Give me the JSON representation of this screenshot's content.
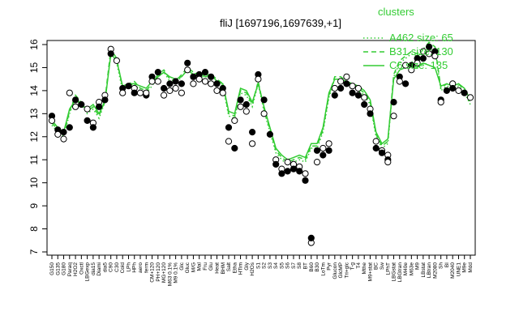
{
  "chart_data": {
    "type": "line",
    "title": "fliJ [1697196,1697639,+1]",
    "xlabel": "",
    "ylabel": "",
    "ylim": [
      7,
      16
    ],
    "yticks": [
      7,
      8,
      9,
      10,
      11,
      12,
      13,
      14,
      15,
      16
    ],
    "grid": false,
    "legend": {
      "title": "clusters",
      "position": "top-right",
      "color": "#33cc33",
      "entries": [
        {
          "label": "A462 size: 65",
          "style": "dotted"
        },
        {
          "label": "B31 size: 130",
          "style": "dashed"
        },
        {
          "label": "C6 size: 135",
          "style": "solid"
        }
      ]
    },
    "x_tick_labels": [
      "G150",
      "G135",
      "G180",
      "Paraq",
      "H2O2",
      "Oxctl",
      "LBGexp",
      "dia15",
      "Diami",
      "dia5",
      "C90",
      "C30",
      "Cold",
      "LPh",
      "HPh",
      "aero",
      "ferm",
      "CM+120",
      "PH+120",
      "MG+120",
      "M63 0.1%",
      "M9 0.1%",
      "Glc",
      "Gluc",
      "M/G",
      "Mal",
      "Fru",
      "Glu",
      "Heat",
      "BHM",
      "Salt",
      "Etha",
      "HTim",
      "Gly",
      "H2Os",
      "S1",
      "S2",
      "S3",
      "S4",
      "S5",
      "S6",
      "S7",
      "S8",
      "BT",
      "B60",
      "B30",
      "LoTm",
      "Pyr",
      "Glucon",
      "GlcMP",
      "Tri+glc",
      "T-g",
      "T4",
      "Mthe",
      "M9+stat",
      "BC",
      "Sw",
      "LPhT",
      "LBGstat",
      "LBGtran",
      "M40e",
      "M63e",
      "M9",
      "LBstat",
      "LBtran",
      "M2080",
      "Sh",
      "BI",
      "M2040",
      "UNE1",
      "M9e",
      "Mdd"
    ],
    "series": [
      {
        "name": "A462 size: 65",
        "values": [
          12.5,
          12.2,
          12.0,
          13.0,
          13.7,
          13.4,
          13.0,
          13.2,
          12.8,
          13.5,
          15.6,
          15.2,
          14.0,
          14.2,
          14.3,
          14.0,
          13.9,
          14.2,
          14.6,
          14.8,
          14.4,
          14.3,
          14.6,
          14.9,
          14.7,
          14.6,
          14.6,
          14.6,
          14.4,
          14.2,
          12.9,
          12.8,
          13.9,
          13.8,
          13.3,
          14.3,
          13.1,
          12.2,
          11.3,
          11.0,
          10.8,
          10.9,
          11.0,
          10.9,
          11.5,
          11.5,
          12.2,
          13.7,
          14.5,
          14.5,
          14.3,
          14.2,
          14.0,
          13.8,
          13.4,
          12.0,
          11.5,
          11.7,
          14.6,
          15.2,
          15.4,
          15.6,
          15.5,
          15.7,
          16.0,
          15.8,
          14.0,
          14.2,
          14.1,
          14.2,
          13.9,
          13.4
        ]
      },
      {
        "name": "B31 size: 130",
        "values": [
          12.6,
          12.3,
          12.1,
          13.1,
          13.8,
          13.5,
          13.1,
          13.3,
          12.9,
          13.6,
          15.8,
          15.4,
          14.1,
          14.3,
          14.4,
          14.1,
          14.0,
          14.3,
          14.7,
          14.9,
          14.5,
          14.4,
          14.7,
          15.0,
          14.8,
          14.7,
          14.7,
          14.7,
          14.5,
          14.3,
          13.0,
          12.9,
          14.0,
          13.9,
          13.4,
          14.4,
          13.2,
          12.3,
          11.4,
          11.1,
          10.9,
          11.0,
          11.1,
          11.0,
          11.6,
          11.6,
          12.3,
          13.8,
          14.6,
          14.6,
          14.4,
          14.3,
          14.1,
          13.9,
          13.5,
          12.1,
          11.6,
          11.8,
          14.7,
          15.3,
          15.5,
          15.7,
          15.6,
          15.8,
          16.1,
          15.9,
          14.1,
          14.3,
          14.2,
          14.3,
          14.0,
          13.5
        ]
      },
      {
        "name": "C6 size: 135",
        "values": [
          12.7,
          12.4,
          12.2,
          13.2,
          13.6,
          13.4,
          13.2,
          13.4,
          13.0,
          13.5,
          15.6,
          15.3,
          14.2,
          14.3,
          14.3,
          14.2,
          14.1,
          14.4,
          14.6,
          14.8,
          14.6,
          14.5,
          14.6,
          14.9,
          14.7,
          14.8,
          14.6,
          14.7,
          14.4,
          14.3,
          13.1,
          13.0,
          14.1,
          14.0,
          13.5,
          14.3,
          13.3,
          12.4,
          11.5,
          11.2,
          11.0,
          11.1,
          11.2,
          11.1,
          11.7,
          11.7,
          12.4,
          13.9,
          14.5,
          14.5,
          14.4,
          14.3,
          14.2,
          14.0,
          13.6,
          12.2,
          11.7,
          11.9,
          14.5,
          14.9,
          15.0,
          15.1,
          15.0,
          15.2,
          15.1,
          15.0,
          14.2,
          14.3,
          14.2,
          14.3,
          14.1,
          13.6
        ]
      }
    ],
    "points": [
      [
        0,
        12.9
      ],
      [
        0,
        12.7
      ],
      [
        1,
        12.3
      ],
      [
        1,
        12.1
      ],
      [
        2,
        12.2
      ],
      [
        2,
        11.9
      ],
      [
        3,
        12.4
      ],
      [
        3,
        13.9
      ],
      [
        4,
        13.6
      ],
      [
        4,
        13.3
      ],
      [
        5,
        13.4
      ],
      [
        6,
        13.2
      ],
      [
        6,
        12.7
      ],
      [
        7,
        12.6
      ],
      [
        7,
        12.4
      ],
      [
        8,
        13.5
      ],
      [
        8,
        13.3
      ],
      [
        9,
        13.8
      ],
      [
        9,
        13.6
      ],
      [
        10,
        15.8
      ],
      [
        10,
        15.6
      ],
      [
        11,
        15.3
      ],
      [
        12,
        14.1
      ],
      [
        12,
        13.9
      ],
      [
        13,
        14.2
      ],
      [
        14,
        14.1
      ],
      [
        14,
        13.9
      ],
      [
        15,
        13.9
      ],
      [
        16,
        13.8
      ],
      [
        16,
        13.9
      ],
      [
        17,
        14.6
      ],
      [
        17,
        14.4
      ],
      [
        18,
        14.8
      ],
      [
        18,
        14.4
      ],
      [
        19,
        14.1
      ],
      [
        19,
        13.8
      ],
      [
        20,
        14.3
      ],
      [
        20,
        14.0
      ],
      [
        21,
        14.4
      ],
      [
        21,
        14.1
      ],
      [
        22,
        14.3
      ],
      [
        22,
        13.9
      ],
      [
        23,
        15.2
      ],
      [
        23,
        14.9
      ],
      [
        24,
        14.6
      ],
      [
        24,
        14.3
      ],
      [
        25,
        14.7
      ],
      [
        25,
        14.5
      ],
      [
        26,
        14.8
      ],
      [
        26,
        14.4
      ],
      [
        27,
        14.6
      ],
      [
        27,
        14.3
      ],
      [
        28,
        14.3
      ],
      [
        28,
        14.0
      ],
      [
        29,
        14.1
      ],
      [
        29,
        13.9
      ],
      [
        30,
        12.4
      ],
      [
        30,
        11.8
      ],
      [
        31,
        11.5
      ],
      [
        31,
        12.7
      ],
      [
        32,
        13.6
      ],
      [
        32,
        13.3
      ],
      [
        33,
        13.4
      ],
      [
        33,
        13.1
      ],
      [
        34,
        12.2
      ],
      [
        34,
        11.7
      ],
      [
        35,
        14.7
      ],
      [
        35,
        14.5
      ],
      [
        36,
        13.6
      ],
      [
        36,
        13.0
      ],
      [
        37,
        12.1
      ],
      [
        38,
        11.0
      ],
      [
        38,
        10.8
      ],
      [
        39,
        10.6
      ],
      [
        39,
        10.4
      ],
      [
        40,
        10.9
      ],
      [
        40,
        10.5
      ],
      [
        41,
        10.8
      ],
      [
        41,
        10.6
      ],
      [
        42,
        10.7
      ],
      [
        42,
        10.5
      ],
      [
        43,
        10.4
      ],
      [
        43,
        10.1
      ],
      [
        44,
        7.4
      ],
      [
        44,
        7.6
      ],
      [
        45,
        10.9
      ],
      [
        45,
        11.4
      ],
      [
        46,
        11.5
      ],
      [
        46,
        11.2
      ],
      [
        47,
        11.7
      ],
      [
        47,
        11.4
      ],
      [
        48,
        14.1
      ],
      [
        48,
        13.8
      ],
      [
        49,
        14.4
      ],
      [
        49,
        14.1
      ],
      [
        50,
        14.6
      ],
      [
        50,
        14.3
      ],
      [
        51,
        14.2
      ],
      [
        51,
        13.9
      ],
      [
        52,
        14.1
      ],
      [
        52,
        13.8
      ],
      [
        53,
        13.7
      ],
      [
        53,
        13.4
      ],
      [
        54,
        13.2
      ],
      [
        54,
        13.0
      ],
      [
        55,
        11.8
      ],
      [
        55,
        11.5
      ],
      [
        56,
        11.4
      ],
      [
        56,
        11.3
      ],
      [
        57,
        11.2
      ],
      [
        57,
        11.0
      ],
      [
        57,
        10.9
      ],
      [
        58,
        13.5
      ],
      [
        58,
        12.9
      ],
      [
        59,
        14.6
      ],
      [
        59,
        14.4
      ],
      [
        60,
        14.3
      ],
      [
        60,
        15.1
      ],
      [
        61,
        15.1
      ],
      [
        61,
        14.9
      ],
      [
        62,
        15.4
      ],
      [
        62,
        15.2
      ],
      [
        63,
        15.4
      ],
      [
        63,
        15.7
      ],
      [
        64,
        15.9
      ],
      [
        64,
        15.6
      ],
      [
        65,
        15.7
      ],
      [
        65,
        15.5
      ],
      [
        66,
        13.6
      ],
      [
        66,
        13.5
      ],
      [
        67,
        14.0
      ],
      [
        68,
        14.3
      ],
      [
        68,
        14.1
      ],
      [
        69,
        14.0
      ],
      [
        70,
        13.9
      ],
      [
        71,
        13.7
      ]
    ]
  }
}
